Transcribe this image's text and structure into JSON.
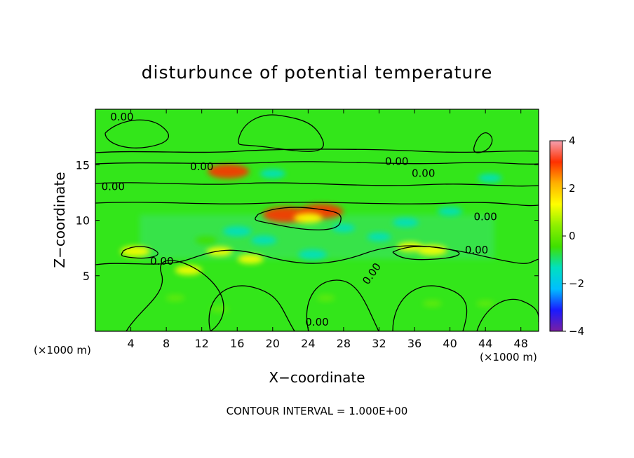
{
  "chart_data": {
    "type": "heatmap",
    "title": "disturbunce of potential temperature",
    "xlabel": "X−coordinate",
    "ylabel": "Z−coordinate",
    "x_unit": "(×1000 m)",
    "z_unit": "(×1000 m)",
    "x_ticks": [
      "4",
      "8",
      "12",
      "16",
      "20",
      "24",
      "28",
      "32",
      "36",
      "40",
      "44",
      "48"
    ],
    "x_tick_values": [
      4,
      8,
      12,
      16,
      20,
      24,
      28,
      32,
      36,
      40,
      44,
      48
    ],
    "y_ticks": [
      "5",
      "10",
      "15"
    ],
    "y_tick_values": [
      5,
      10,
      15
    ],
    "xlim": [
      0,
      50
    ],
    "ylim": [
      0,
      20
    ],
    "colorbar": {
      "ticks": [
        "4",
        "2",
        "0",
        "−2",
        "−4"
      ],
      "tick_values": [
        4,
        2,
        0,
        -2,
        -4
      ],
      "range": [
        -4,
        4
      ],
      "colors": [
        "#7a1fa2",
        "#1a1aff",
        "#00bfff",
        "#00e0c0",
        "#3fe000",
        "#8ef000",
        "#ffff00",
        "#ffb000",
        "#ff3000",
        "#f5a0b0"
      ]
    },
    "contour_labels": [
      "0.00",
      "0.00",
      "0.00",
      "0.00",
      "0.00",
      "0.00",
      "0.00",
      "0.00",
      "0.00",
      "0.00"
    ],
    "contour_interval_text": "CONTOUR INTERVAL = 1.000E+00",
    "field_background": "#33e61a",
    "anomalies": [
      {
        "x": 21.5,
        "z": 10.5,
        "value": 3.3
      },
      {
        "x": 25.5,
        "z": 10.8,
        "value": 3.0
      },
      {
        "x": 24.0,
        "z": 10.2,
        "value": 1.5
      },
      {
        "x": 15.0,
        "z": 14.4,
        "value": 2.8
      },
      {
        "x": 4.5,
        "z": 7.2,
        "value": 1.6
      },
      {
        "x": 10.5,
        "z": 5.5,
        "value": 1.3
      },
      {
        "x": 17.5,
        "z": 6.5,
        "value": 1.2
      },
      {
        "x": 38.0,
        "z": 7.3,
        "value": 1.6
      },
      {
        "x": 35.5,
        "z": 7.6,
        "value": 1.2
      },
      {
        "x": 14.0,
        "z": 7.2,
        "value": 1.2
      },
      {
        "x": 24.5,
        "z": 6.9,
        "value": -1.5
      },
      {
        "x": 19.0,
        "z": 8.2,
        "value": -1.2
      },
      {
        "x": 16.0,
        "z": 9.0,
        "value": -1.5
      },
      {
        "x": 32.0,
        "z": 8.5,
        "value": -1.0
      },
      {
        "x": 40.0,
        "z": 10.8,
        "value": -1.1
      },
      {
        "x": 44.5,
        "z": 13.8,
        "value": -1.0
      },
      {
        "x": 20.0,
        "z": 14.2,
        "value": -1.2
      },
      {
        "x": 35.0,
        "z": 9.8,
        "value": -1.2
      },
      {
        "x": 28.0,
        "z": 9.3,
        "value": -0.9
      },
      {
        "x": 12.5,
        "z": 8.2,
        "value": -0.8
      },
      {
        "x": 9.0,
        "z": 3.0,
        "value": 0.5
      },
      {
        "x": 14.0,
        "z": 2.0,
        "value": 0.4
      },
      {
        "x": 26.0,
        "z": 3.0,
        "value": 0.4
      },
      {
        "x": 38.0,
        "z": 2.5,
        "value": 0.5
      },
      {
        "x": 44.0,
        "z": 2.5,
        "value": 0.4
      }
    ]
  }
}
